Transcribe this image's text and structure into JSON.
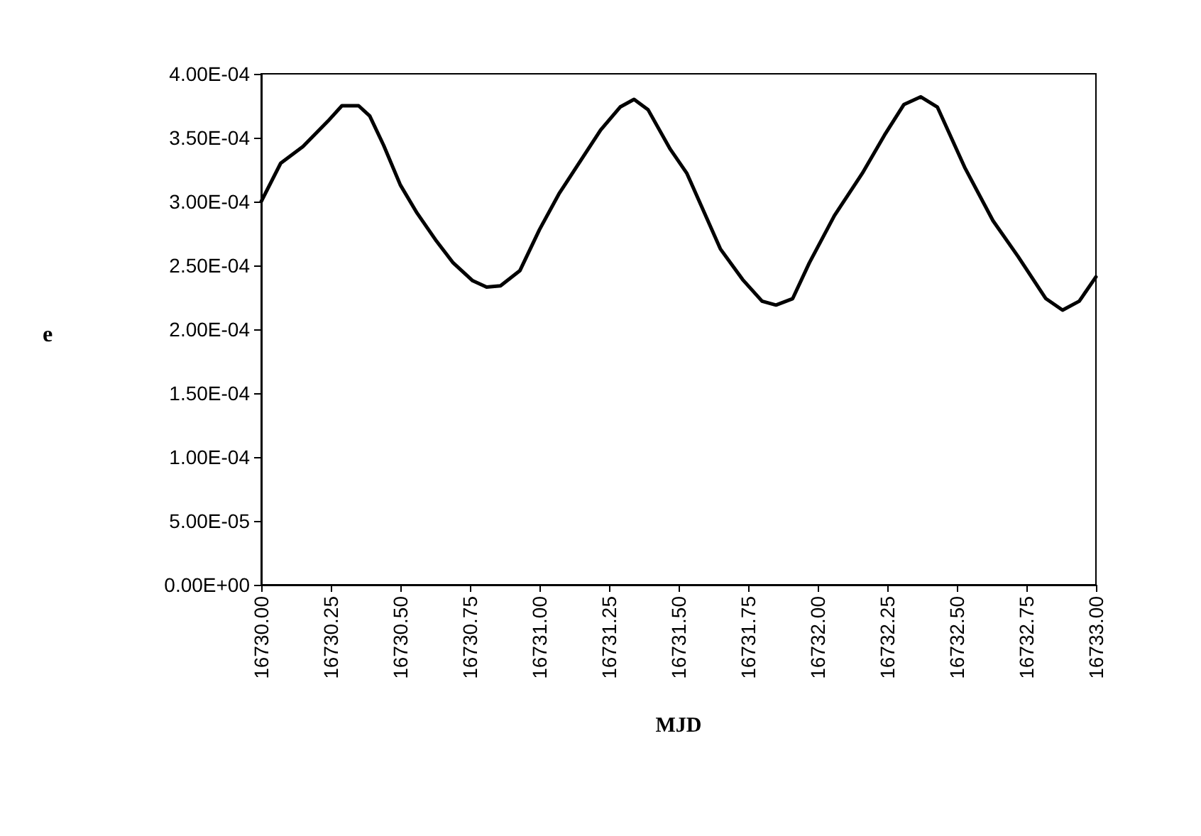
{
  "chart_data": {
    "type": "line",
    "xlabel": "MJD",
    "ylabel": "e",
    "x": [
      16730.0,
      16730.07,
      16730.15,
      16730.24,
      16730.29,
      16730.35,
      16730.39,
      16730.44,
      16730.5,
      16730.56,
      16730.63,
      16730.69,
      16730.76,
      16730.81,
      16730.86,
      16730.93,
      16731.0,
      16731.07,
      16731.13,
      16731.22,
      16731.29,
      16731.34,
      16731.39,
      16731.47,
      16731.53,
      16731.65,
      16731.73,
      16731.8,
      16731.85,
      16731.91,
      16731.97,
      16732.06,
      16732.16,
      16732.24,
      16732.31,
      16732.37,
      16732.43,
      16732.53,
      16732.63,
      16732.72,
      16732.82,
      16732.88,
      16732.94,
      16733.0
    ],
    "series": [
      {
        "color": "#000000",
        "values": [
          0.0003,
          0.00033,
          0.000343,
          0.000363,
          0.000375,
          0.000375,
          0.000367,
          0.000344,
          0.000313,
          0.000291,
          0.000269,
          0.000252,
          0.000238,
          0.000233,
          0.000234,
          0.000246,
          0.000278,
          0.000306,
          0.000326,
          0.000356,
          0.000374,
          0.00038,
          0.000372,
          0.000341,
          0.000322,
          0.000263,
          0.000239,
          0.000222,
          0.000219,
          0.000224,
          0.000252,
          0.000289,
          0.000322,
          0.000352,
          0.000376,
          0.000382,
          0.000374,
          0.000326,
          0.000285,
          0.000257,
          0.000224,
          0.000215,
          0.000222,
          0.000241
        ]
      }
    ],
    "xlim": [
      16730,
      16733
    ],
    "xticks": [
      {
        "value": 16730,
        "label": "16730.00"
      },
      {
        "value": 16730.25,
        "label": "16730.25"
      },
      {
        "value": 16730.5,
        "label": "16730.50"
      },
      {
        "value": 16730.75,
        "label": "16730.75"
      },
      {
        "value": 16731,
        "label": "16731.00"
      },
      {
        "value": 16731.25,
        "label": "16731.25"
      },
      {
        "value": 16731.5,
        "label": "16731.50"
      },
      {
        "value": 16731.75,
        "label": "16731.75"
      },
      {
        "value": 16732,
        "label": "16732.00"
      },
      {
        "value": 16732.25,
        "label": "16732.25"
      },
      {
        "value": 16732.5,
        "label": "16732.50"
      },
      {
        "value": 16732.75,
        "label": "16732.75"
      },
      {
        "value": 16733,
        "label": "16733.00"
      }
    ],
    "ylim": [
      0,
      0.0004
    ],
    "yticks": [
      {
        "value": 0,
        "label": "0.00E+00"
      },
      {
        "value": 5e-05,
        "label": "5.00E-05"
      },
      {
        "value": 0.0001,
        "label": "1.00E-04"
      },
      {
        "value": 0.00015,
        "label": "1.50E-04"
      },
      {
        "value": 0.0002,
        "label": "2.00E-04"
      },
      {
        "value": 0.00025,
        "label": "2.50E-04"
      },
      {
        "value": 0.0003,
        "label": "3.00E-04"
      },
      {
        "value": 0.00035,
        "label": "3.50E-04"
      },
      {
        "value": 0.0004,
        "label": "4.00E-04"
      }
    ],
    "grid": false,
    "marker": "none",
    "line_style": "solid"
  }
}
